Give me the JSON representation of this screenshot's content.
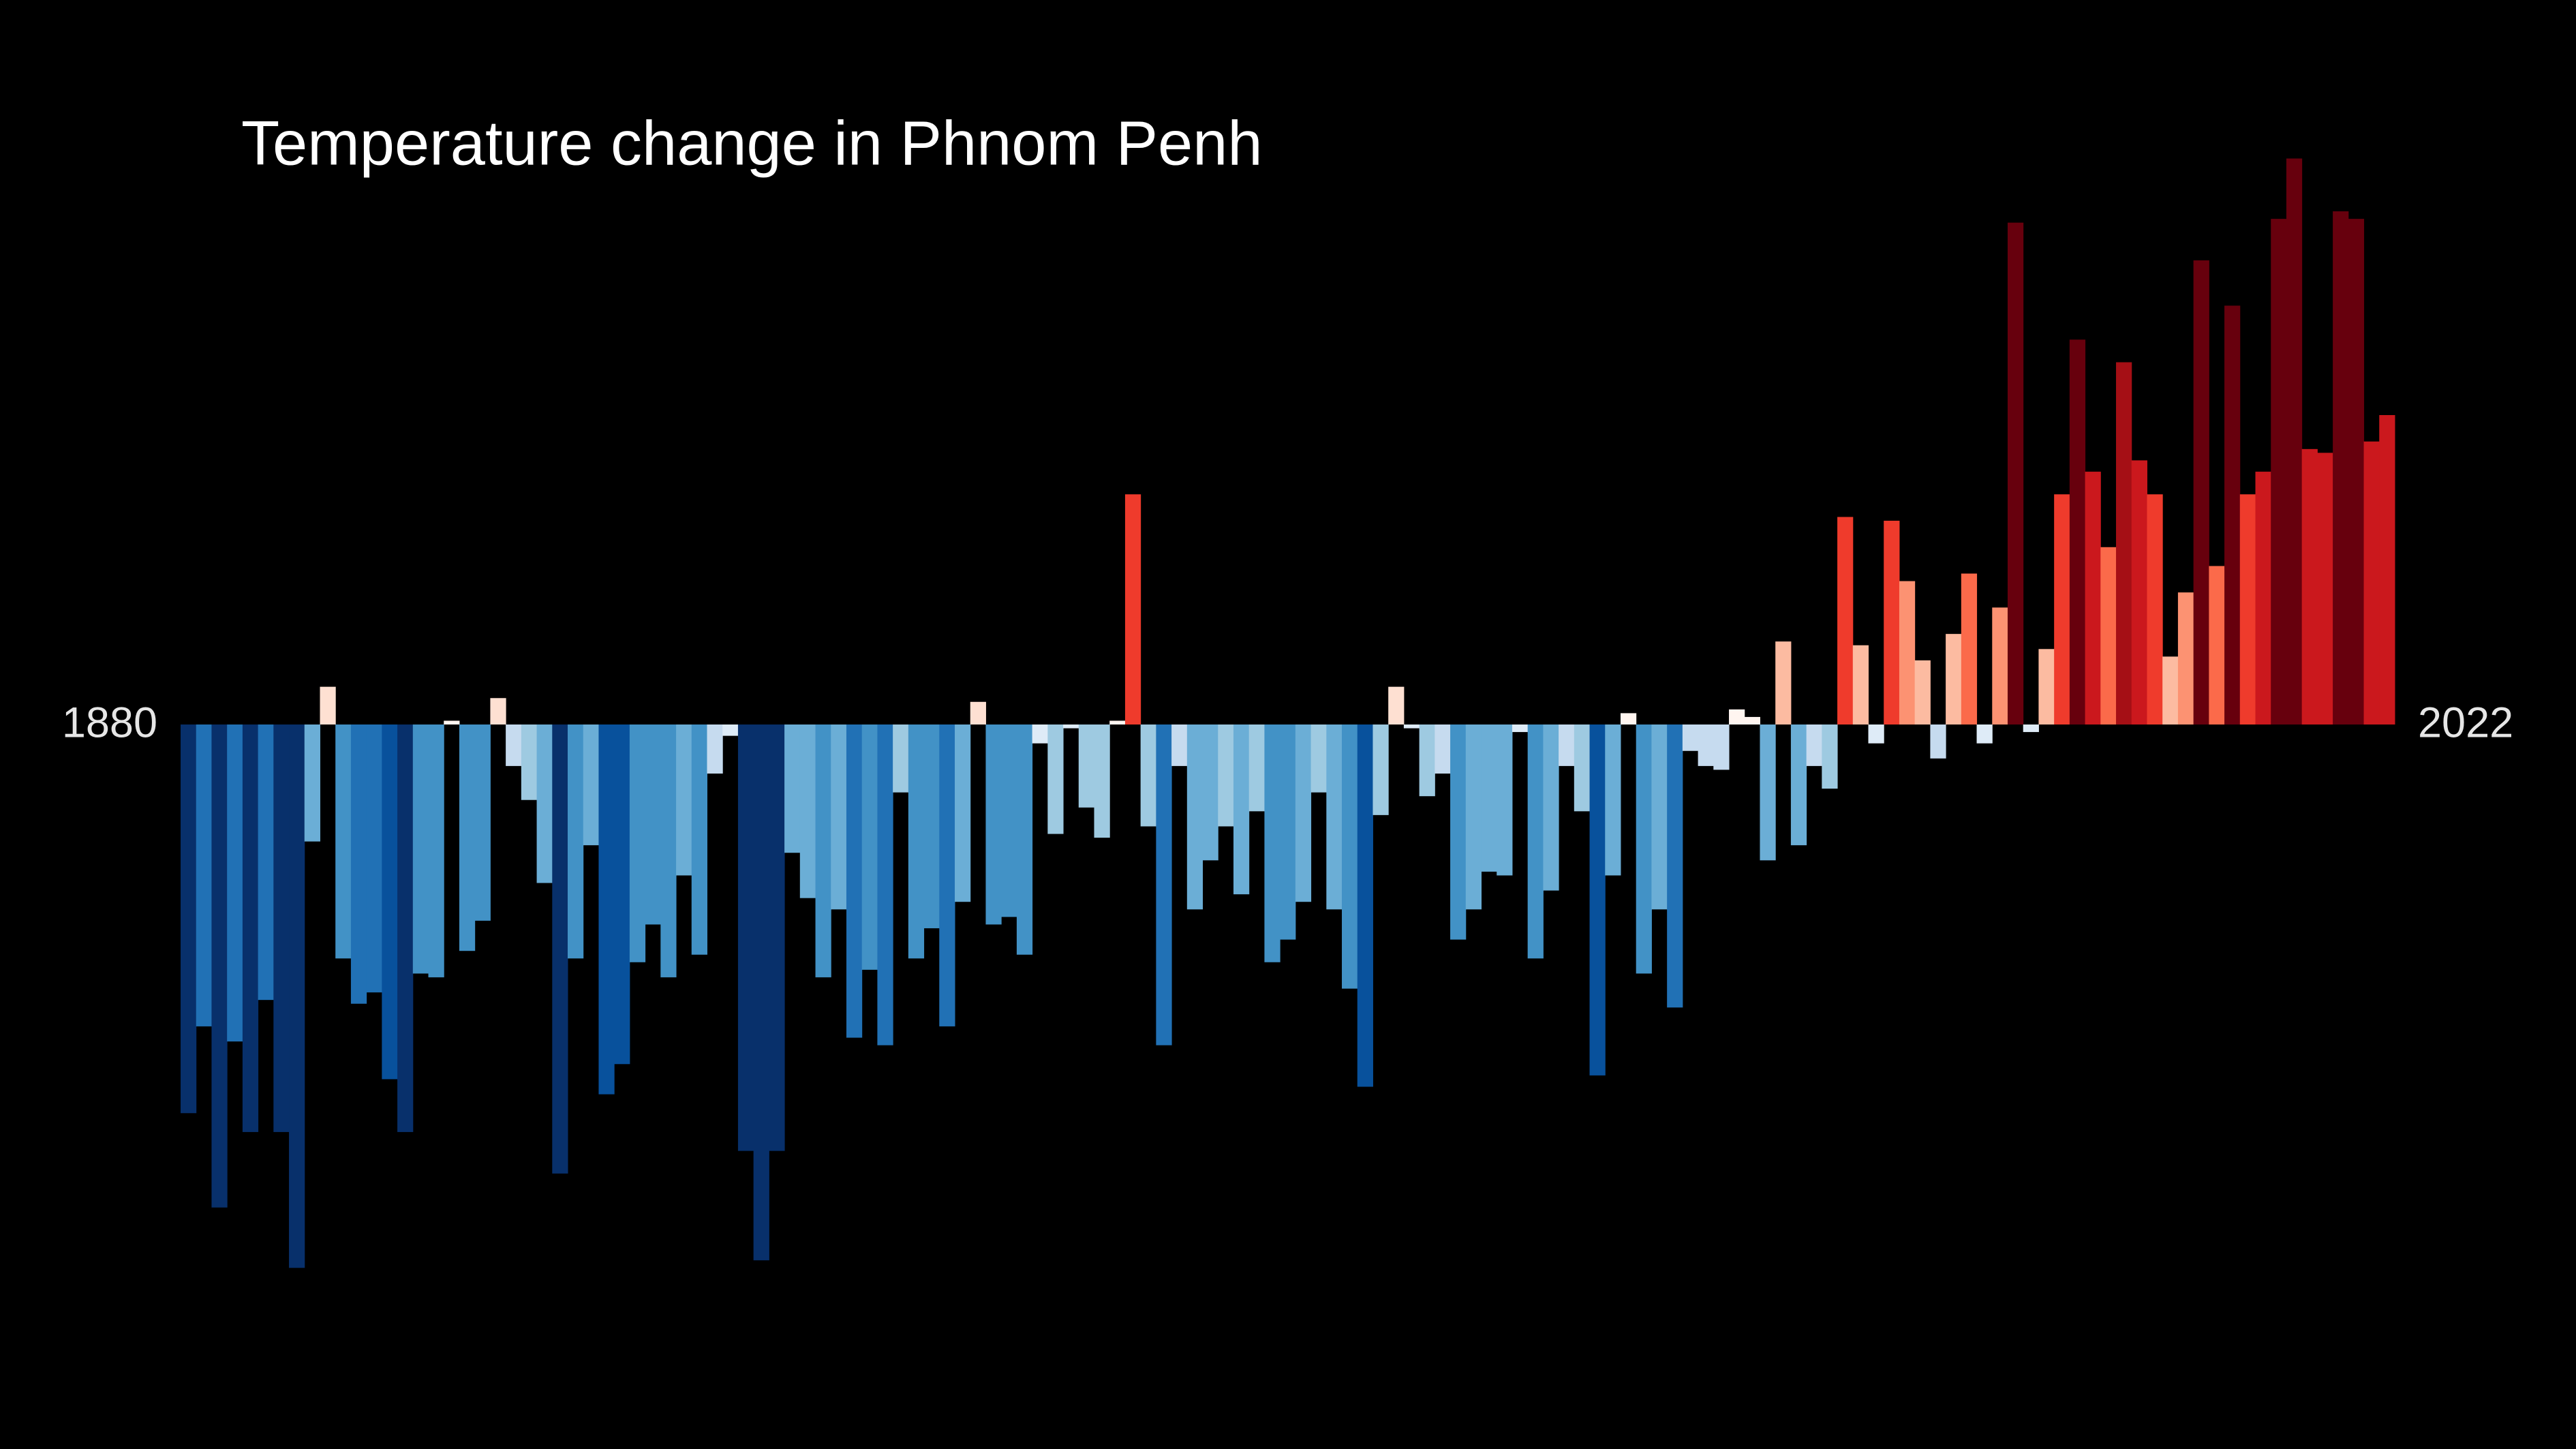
{
  "chart_data": {
    "type": "bar",
    "title": "Temperature change in Phnom Penh",
    "categories": [
      "1880",
      null,
      null,
      null,
      null,
      null,
      null,
      null,
      null,
      null,
      null,
      null,
      null,
      null,
      null,
      null,
      null,
      null,
      null,
      null,
      null,
      null,
      null,
      null,
      null,
      null,
      null,
      null,
      null,
      null,
      null,
      null,
      null,
      null,
      null,
      null,
      null,
      null,
      null,
      null,
      null,
      null,
      null,
      null,
      null,
      null,
      null,
      null,
      null,
      null,
      null,
      null,
      null,
      null,
      null,
      null,
      null,
      null,
      null,
      null,
      null,
      null,
      null,
      null,
      null,
      null,
      null,
      null,
      null,
      null,
      null,
      null,
      null,
      null,
      null,
      null,
      null,
      null,
      null,
      null,
      null,
      null,
      null,
      null,
      null,
      null,
      null,
      null,
      null,
      null,
      null,
      null,
      null,
      null,
      null,
      null,
      null,
      null,
      null,
      null,
      null,
      null,
      null,
      null,
      null,
      null,
      null,
      null,
      null,
      null,
      null,
      null,
      null,
      null,
      null,
      null,
      null,
      null,
      null,
      null,
      null,
      null,
      null,
      null,
      null,
      null,
      null,
      null,
      null,
      null,
      null,
      null,
      null,
      null,
      null,
      null,
      null,
      null,
      null,
      null,
      null,
      null,
      "2022"
    ],
    "values": [
      -1.03,
      -0.8,
      -1.28,
      -0.84,
      -1.08,
      -0.73,
      -1.08,
      -1.44,
      -0.31,
      0.1,
      -0.62,
      -0.74,
      -0.71,
      -0.94,
      -1.08,
      -0.66,
      -0.67,
      0.01,
      -0.6,
      -0.52,
      0.07,
      -0.11,
      -0.2,
      -0.42,
      -1.19,
      -0.62,
      -0.32,
      -0.98,
      -0.9,
      -0.63,
      -0.53,
      -0.67,
      -0.4,
      -0.61,
      -0.13,
      -0.03,
      -1.13,
      -1.42,
      -1.13,
      -0.34,
      -0.46,
      -0.67,
      -0.49,
      -0.83,
      -0.65,
      -0.85,
      -0.18,
      -0.62,
      -0.54,
      -0.8,
      -0.47,
      0.06,
      -0.53,
      -0.51,
      -0.61,
      -0.05,
      -0.29,
      -0.01,
      -0.22,
      -0.3,
      0.01,
      0.61,
      -0.27,
      -0.85,
      -0.11,
      -0.49,
      -0.36,
      -0.27,
      -0.45,
      -0.23,
      -0.63,
      -0.57,
      -0.47,
      -0.18,
      -0.49,
      -0.7,
      -0.96,
      -0.24,
      0.1,
      -0.01,
      -0.19,
      -0.13,
      -0.57,
      -0.49,
      -0.39,
      -0.4,
      -0.02,
      -0.62,
      -0.44,
      -0.11,
      -0.23,
      -0.93,
      -0.4,
      0.03,
      -0.66,
      -0.49,
      -0.75,
      -0.07,
      -0.11,
      -0.12,
      0.04,
      0.02,
      -0.36,
      0.22,
      -0.32,
      -0.11,
      -0.17,
      0.55,
      0.21,
      -0.05,
      0.54,
      0.38,
      0.17,
      -0.09,
      0.24,
      0.4,
      -0.05,
      0.31,
      1.33,
      -0.02,
      0.2,
      0.61,
      1.02,
      0.67,
      0.47,
      0.96,
      0.7,
      0.61,
      0.18,
      0.35,
      1.23,
      0.42,
      1.11,
      0.61,
      0.67,
      1.34,
      1.5,
      0.73,
      0.72,
      1.36,
      1.34,
      0.75,
      0.82
    ],
    "ylim": [
      -1.92,
      1.92
    ]
  }
}
